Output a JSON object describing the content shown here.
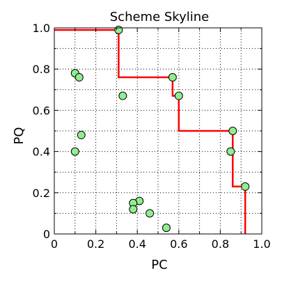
{
  "chart_data": {
    "type": "scatter",
    "title": "Scheme Skyline",
    "xlabel": "PC",
    "ylabel": "PQ",
    "xlim": [
      0,
      1.0
    ],
    "ylim": [
      0,
      1.0
    ],
    "x_ticks": [
      "0",
      "0.2",
      "0.4",
      "0.6",
      "0.8",
      "1.0"
    ],
    "y_ticks": [
      "0",
      "0.2",
      "0.4",
      "0.6",
      "0.8",
      "1.0"
    ],
    "grid": true,
    "grid_style": "dotted",
    "points": [
      {
        "x": 0.31,
        "y": 0.99
      },
      {
        "x": 0.1,
        "y": 0.78
      },
      {
        "x": 0.12,
        "y": 0.76
      },
      {
        "x": 0.33,
        "y": 0.67
      },
      {
        "x": 0.13,
        "y": 0.48
      },
      {
        "x": 0.1,
        "y": 0.4
      },
      {
        "x": 0.57,
        "y": 0.76
      },
      {
        "x": 0.6,
        "y": 0.67
      },
      {
        "x": 0.41,
        "y": 0.16
      },
      {
        "x": 0.38,
        "y": 0.15
      },
      {
        "x": 0.38,
        "y": 0.12
      },
      {
        "x": 0.46,
        "y": 0.1
      },
      {
        "x": 0.54,
        "y": 0.03
      },
      {
        "x": 0.86,
        "y": 0.5
      },
      {
        "x": 0.85,
        "y": 0.4
      },
      {
        "x": 0.92,
        "y": 0.23
      }
    ],
    "skyline": [
      {
        "x": 0.0,
        "y": 0.99
      },
      {
        "x": 0.31,
        "y": 0.99
      },
      {
        "x": 0.31,
        "y": 0.76
      },
      {
        "x": 0.57,
        "y": 0.76
      },
      {
        "x": 0.57,
        "y": 0.67
      },
      {
        "x": 0.6,
        "y": 0.67
      },
      {
        "x": 0.6,
        "y": 0.5
      },
      {
        "x": 0.86,
        "y": 0.5
      },
      {
        "x": 0.86,
        "y": 0.23
      },
      {
        "x": 0.92,
        "y": 0.23
      },
      {
        "x": 0.92,
        "y": 0.0
      }
    ],
    "colors": {
      "point_fill": "#90ee90",
      "point_stroke": "#000000",
      "skyline": "#ff0000",
      "grid": "#000000",
      "axis": "#000000"
    }
  }
}
